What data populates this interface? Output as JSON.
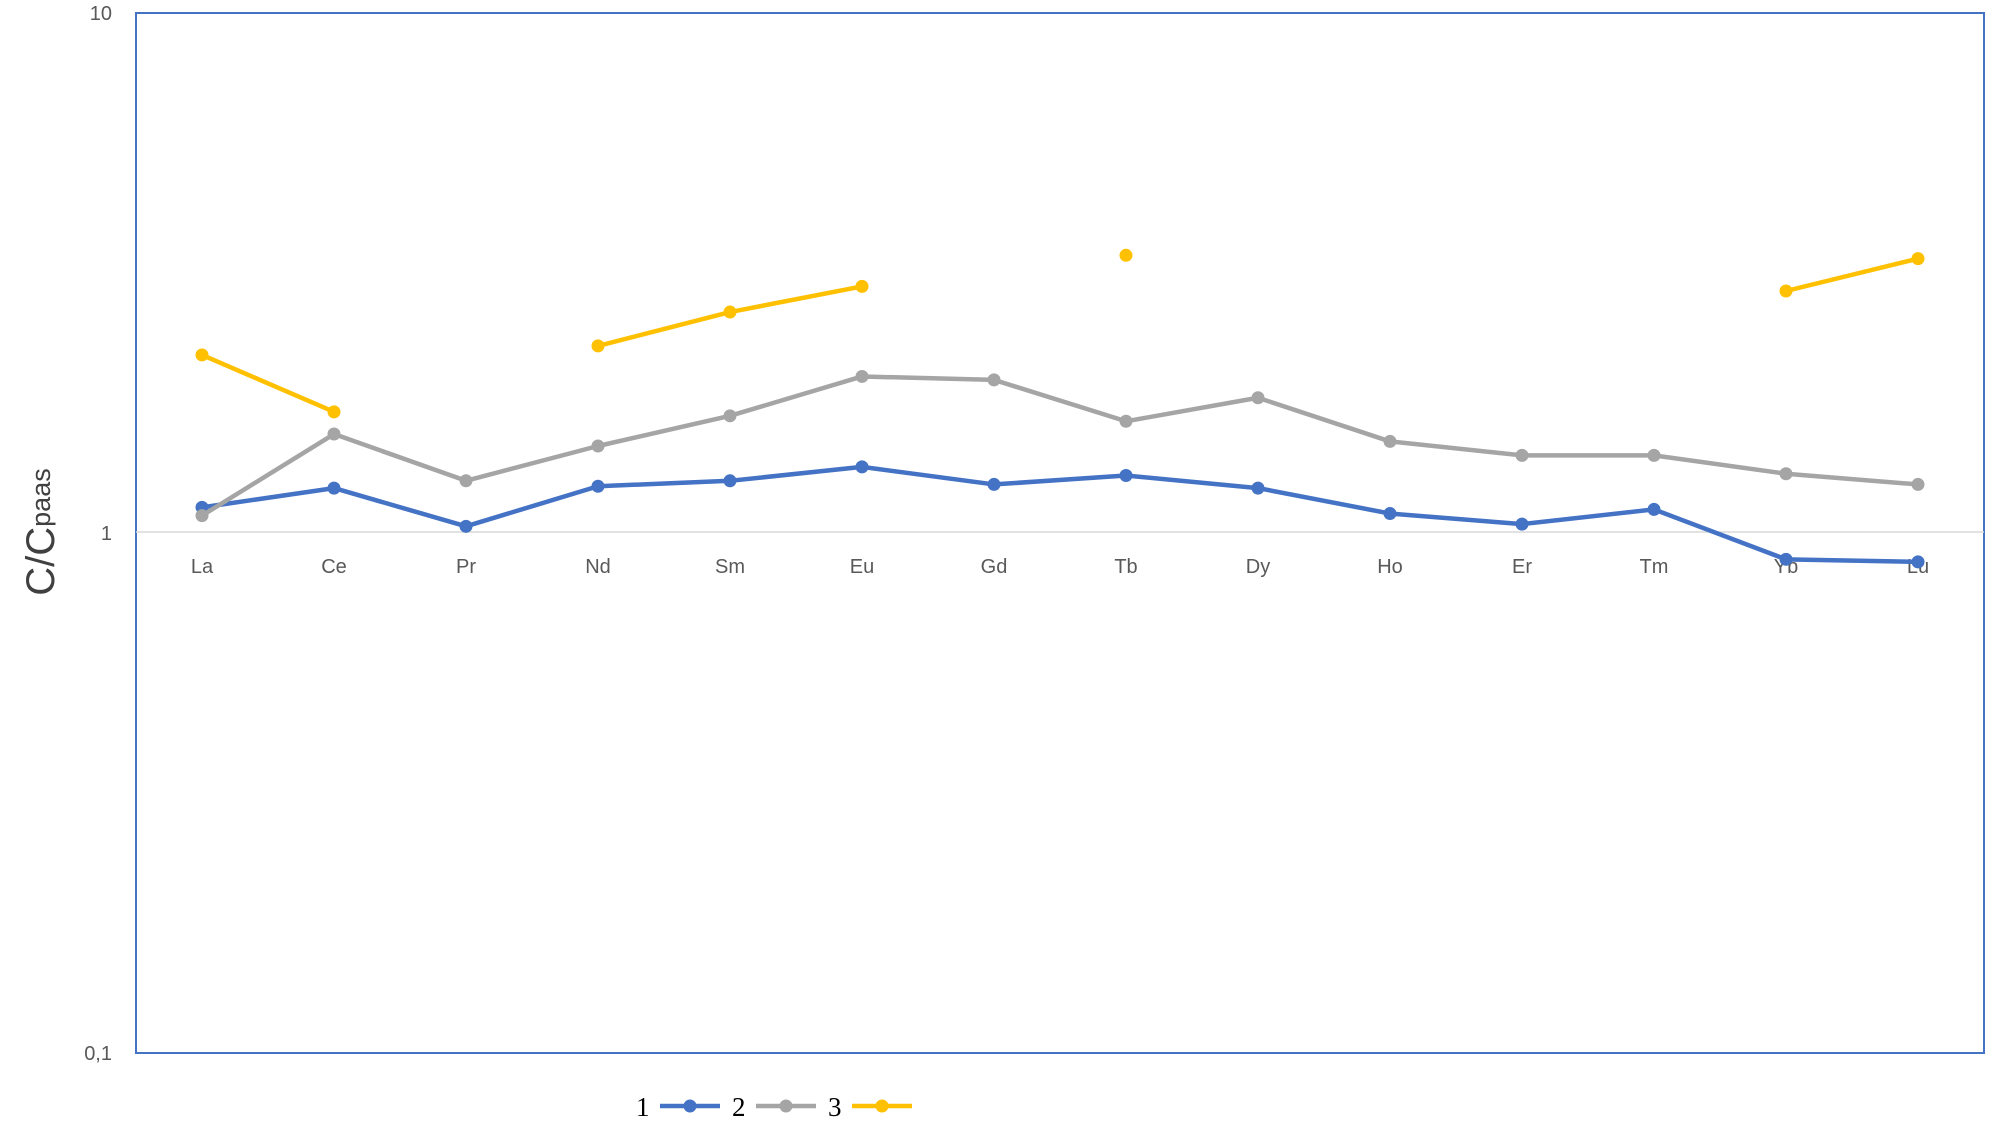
{
  "chart_data": {
    "type": "line",
    "yscale": "log",
    "ylim": [
      0.1,
      10
    ],
    "yticks": [
      {
        "value": 0.1,
        "label": "0,1"
      },
      {
        "value": 1,
        "label": "1"
      },
      {
        "value": 10,
        "label": "10"
      }
    ],
    "ylabel": {
      "main": "C/C",
      "sub": "paas"
    },
    "xlabel": "",
    "title": "",
    "categories": [
      "La",
      "Ce",
      "Pr",
      "Nd",
      "Sm",
      "Eu",
      "Gd",
      "Tb",
      "Dy",
      "Ho",
      "Er",
      "Tm",
      "Yb",
      "Lu"
    ],
    "series": [
      {
        "name": "1",
        "color": "#4472C4",
        "values": [
          1.12,
          1.22,
          1.03,
          1.23,
          1.26,
          1.34,
          1.24,
          1.29,
          1.22,
          1.09,
          1.04,
          1.11,
          0.89,
          0.88
        ]
      },
      {
        "name": "2",
        "color": "#A5A5A5",
        "values": [
          1.08,
          1.55,
          1.26,
          1.47,
          1.68,
          2.0,
          1.97,
          1.64,
          1.82,
          1.5,
          1.41,
          1.41,
          1.3,
          1.24
        ]
      },
      {
        "name": "3",
        "color": "#FFC000",
        "values": [
          2.2,
          1.71,
          null,
          2.29,
          2.66,
          2.98,
          null,
          3.42,
          null,
          null,
          null,
          null,
          2.92,
          3.37
        ]
      }
    ],
    "grid": false,
    "legend_position": "bottom"
  }
}
